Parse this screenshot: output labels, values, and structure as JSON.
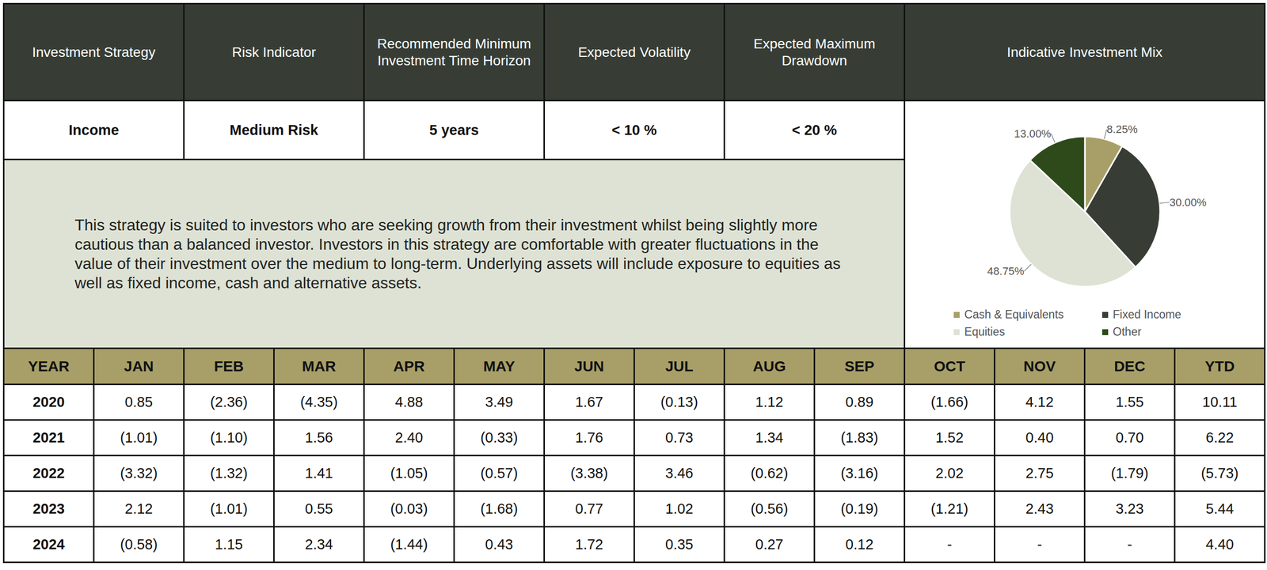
{
  "header": {
    "columns": [
      "Investment Strategy",
      "Risk Indicator",
      "Recommended Minimum Investment Time Horizon",
      "Expected Volatility",
      "Expected Maximum Drawdown",
      "Indicative Investment Mix"
    ],
    "values": [
      "Income",
      "Medium Risk",
      "5 years",
      "< 10 %",
      "< 20 %"
    ]
  },
  "description": "This strategy is suited to investors who are seeking growth from their investment whilst being slightly more cautious than a balanced investor. Investors in this strategy are comfortable with greater fluctuations in the value of their investment over the medium to long-term. Underlying assets will include exposure to equities as well as fixed income, cash and alternative assets.",
  "chart_data": {
    "type": "pie",
    "categories": [
      "Cash & Equivalents",
      "Fixed Income",
      "Equities",
      "Other"
    ],
    "values": [
      8.25,
      30.0,
      48.75,
      13.0
    ],
    "value_labels": [
      "8.25%",
      "30.00%",
      "48.75%",
      "13.00%"
    ],
    "colors": [
      "#a89f68",
      "#373d35",
      "#dde2d4",
      "#2e4a1b"
    ],
    "data_labels": true,
    "legend": "bottom"
  },
  "table": {
    "columns": [
      "YEAR",
      "JAN",
      "FEB",
      "MAR",
      "APR",
      "MAY",
      "JUN",
      "JUL",
      "AUG",
      "SEP",
      "OCT",
      "NOV",
      "DEC",
      "YTD"
    ],
    "rows": [
      [
        "2020",
        "0.85",
        "(2.36)",
        "(4.35)",
        "4.88",
        "3.49",
        "1.67",
        "(0.13)",
        "1.12",
        "0.89",
        "(1.66)",
        "4.12",
        "1.55",
        "10.11"
      ],
      [
        "2021",
        "(1.01)",
        "(1.10)",
        "1.56",
        "2.40",
        "(0.33)",
        "1.76",
        "0.73",
        "1.34",
        "(1.83)",
        "1.52",
        "0.40",
        "0.70",
        "6.22"
      ],
      [
        "2022",
        "(3.32)",
        "(1.32)",
        "1.41",
        "(1.05)",
        "(0.57)",
        "(3.38)",
        "3.46",
        "(0.62)",
        "(3.16)",
        "2.02",
        "2.75",
        "(1.79)",
        "(5.73)"
      ],
      [
        "2023",
        "2.12",
        "(1.01)",
        "0.55",
        "(0.03)",
        "(1.68)",
        "0.77",
        "1.02",
        "(0.56)",
        "(0.19)",
        "(1.21)",
        "2.43",
        "3.23",
        "5.44"
      ],
      [
        "2024",
        "(0.58)",
        "1.15",
        "2.34",
        "(1.44)",
        "0.43",
        "1.72",
        "0.35",
        "0.27",
        "0.12",
        "-",
        "-",
        "-",
        "4.40"
      ]
    ]
  }
}
